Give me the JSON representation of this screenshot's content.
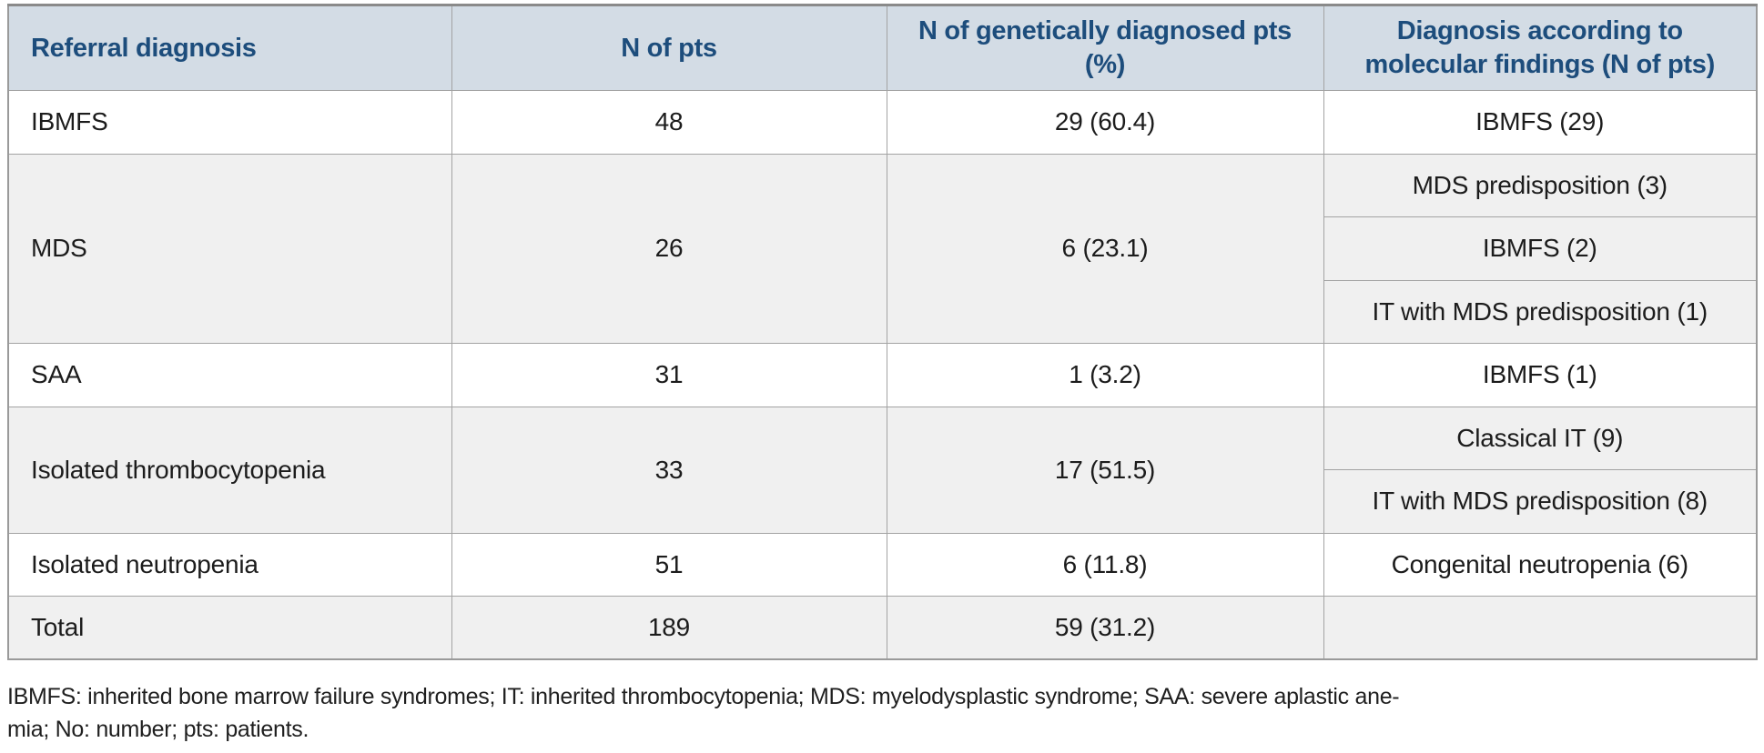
{
  "table": {
    "columns": [
      {
        "id": "referral-diagnosis",
        "lines": [
          "Referral diagnosis"
        ]
      },
      {
        "id": "n-of-pts",
        "lines": [
          "N of pts"
        ]
      },
      {
        "id": "n-genetically-diagnosed-pts",
        "lines": [
          "N of genetically diagnosed pts",
          "(%)"
        ]
      },
      {
        "id": "molecular-findings",
        "lines": [
          "Diagnosis according to",
          "molecular findings (N of pts)"
        ]
      }
    ],
    "rows": [
      {
        "referral": "IBMFS",
        "n_pts": "48",
        "n_genetic": "29 (60.4)",
        "molecular": [
          "IBMFS (29)"
        ]
      },
      {
        "referral": "MDS",
        "n_pts": "26",
        "n_genetic": "6 (23.1)",
        "molecular": [
          "MDS predisposition (3)",
          "IBMFS (2)",
          "IT with MDS predisposition (1)"
        ]
      },
      {
        "referral": "SAA",
        "n_pts": "31",
        "n_genetic": "1 (3.2)",
        "molecular": [
          "IBMFS (1)"
        ]
      },
      {
        "referral": "Isolated thrombocytopenia",
        "n_pts": "33",
        "n_genetic": "17 (51.5)",
        "molecular": [
          "Classical IT (9)",
          "IT with MDS predisposition (8)"
        ]
      },
      {
        "referral": "Isolated neutropenia",
        "n_pts": "51",
        "n_genetic": "6 (11.8)",
        "molecular": [
          "Congenital neutropenia (6)"
        ]
      },
      {
        "referral": "Total",
        "n_pts": "189",
        "n_genetic": "59 (31.2)",
        "molecular": [
          ""
        ]
      }
    ]
  },
  "footnote": {
    "line1": "IBMFS: inherited bone marrow failure syndromes; IT: inherited thrombocytopenia; MDS: myelodysplastic syndrome; SAA: severe aplastic ane-",
    "line2": "mia; No: number; pts: patients."
  },
  "colors": {
    "header_bg": "#d3dce5",
    "header_text": "#1d4d7c",
    "row_bg": "#ffffff",
    "row_alt_bg": "#f0f0f0",
    "border_main": "#a3a3a3",
    "border_sub": "#c8c8c8",
    "body_text": "#1c1c1c"
  }
}
